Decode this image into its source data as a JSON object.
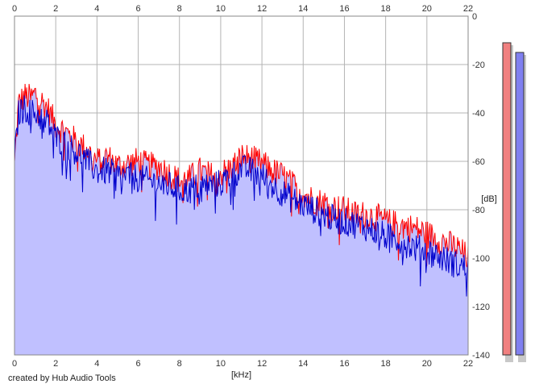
{
  "chart_data": {
    "type": "area",
    "xlabel": "[kHz]",
    "ylabel": "[dB]",
    "xlim": [
      0,
      22
    ],
    "ylim": [
      -140,
      0
    ],
    "x_ticks": [
      0,
      2,
      4,
      6,
      8,
      10,
      12,
      14,
      16,
      18,
      20,
      22
    ],
    "y_ticks": [
      0,
      -20,
      -40,
      -60,
      -80,
      -100,
      -120,
      -140
    ],
    "grid": true,
    "series": [
      {
        "color": "#ff0000",
        "x": [
          0.0,
          0.2,
          0.5,
          0.8,
          1.0,
          1.3,
          1.6,
          2.0,
          2.5,
          3.0,
          3.5,
          4.0,
          4.5,
          5.0,
          5.5,
          6.0,
          6.5,
          7.0,
          7.5,
          8.0,
          8.5,
          9.0,
          9.5,
          10.0,
          10.5,
          11.0,
          11.5,
          12.0,
          12.5,
          13.0,
          13.5,
          14.0,
          14.5,
          15.0,
          15.5,
          16.0,
          16.5,
          17.0,
          17.5,
          18.0,
          18.5,
          19.0,
          19.5,
          20.0,
          20.5,
          21.0,
          21.5,
          22.0
        ],
        "y": [
          -60,
          -36,
          -33,
          -34,
          -32,
          -35,
          -38,
          -45,
          -48,
          -52,
          -55,
          -60,
          -58,
          -62,
          -61,
          -60,
          -62,
          -62,
          -65,
          -68,
          -67,
          -64,
          -66,
          -65,
          -63,
          -58,
          -59,
          -61,
          -64,
          -66,
          -70,
          -73,
          -76,
          -77,
          -79,
          -80,
          -82,
          -82,
          -83,
          -85,
          -86,
          -87,
          -88,
          -90,
          -92,
          -94,
          -96,
          -100
        ]
      },
      {
        "color": "#0000cc",
        "x": [
          0.0,
          0.2,
          0.5,
          0.8,
          1.0,
          1.3,
          1.6,
          2.0,
          2.5,
          3.0,
          3.5,
          4.0,
          4.5,
          5.0,
          5.5,
          6.0,
          6.5,
          7.0,
          7.5,
          8.0,
          8.5,
          9.0,
          9.5,
          10.0,
          10.5,
          11.0,
          11.5,
          12.0,
          12.5,
          13.0,
          13.5,
          14.0,
          14.5,
          15.0,
          15.5,
          16.0,
          16.5,
          17.0,
          17.5,
          18.0,
          18.5,
          19.0,
          19.5,
          20.0,
          20.5,
          21.0,
          21.5,
          22.0
        ],
        "y": [
          -60,
          -40,
          -38,
          -40,
          -40,
          -42,
          -44,
          -50,
          -53,
          -56,
          -60,
          -64,
          -64,
          -66,
          -66,
          -67,
          -68,
          -69,
          -70,
          -72,
          -72,
          -70,
          -70,
          -69,
          -66,
          -63,
          -64,
          -66,
          -70,
          -73,
          -76,
          -78,
          -80,
          -82,
          -84,
          -85,
          -86,
          -87,
          -89,
          -91,
          -92,
          -94,
          -96,
          -97,
          -99,
          -101,
          -103,
          -104
        ]
      }
    ],
    "fill_color": "#c0c0ff",
    "meters": [
      {
        "color": "#f08080",
        "level_db": -11
      },
      {
        "color": "#8080f0",
        "level_db": -15
      }
    ]
  },
  "credit": "created by Hub Audio Tools"
}
